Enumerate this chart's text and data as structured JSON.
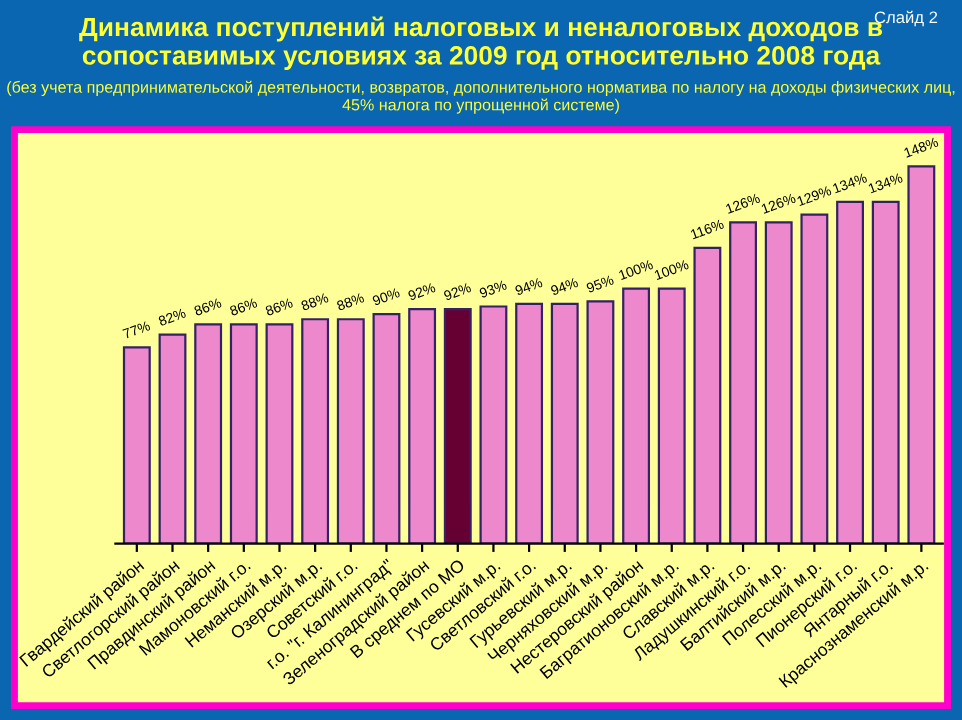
{
  "chart_data": {
    "type": "bar",
    "title": "Динамика поступлений налоговых и неналоговых доходов в сопоставимых условиях за 2009 год относительно 2008 года",
    "subtitle": "(без учета предпринимательской деятельности, возвратов, дополнительного норматива по налогу на доходы физических лиц, 45% налога по упрощенной системе)",
    "annotations": [
      "Слайд 2"
    ],
    "categories": [
      "Гвардейский район",
      "Светлогорский район",
      "Правдинский район",
      "Мамоновский г.о.",
      "Неманский м.р.",
      "Озерский м.р.",
      "Советский г.о.",
      "г.о. \"г. Калининград\"",
      "Зеленоградский район",
      "В среднем по МО",
      "Гусевский м.р.",
      "Светловский г.о.",
      "Гурьевский м.р.",
      "Черняховский м.р.",
      "Нестеровский район",
      "Багратионовский м.р.",
      "Славский м.р.",
      "Ладушкинский г.о.",
      "Балтийский м.р.",
      "Полесский м.р.",
      "Пионерский г.о.",
      "Янтарный г.о.",
      "Краснознаменский м.р."
    ],
    "values": [
      77,
      82,
      86,
      86,
      86,
      88,
      88,
      90,
      92,
      92,
      93,
      94,
      94,
      95,
      100,
      100,
      116,
      126,
      126,
      129,
      134,
      134,
      148
    ],
    "value_labels": [
      "77%",
      "82%",
      "86%",
      "86%",
      "86%",
      "88%",
      "88%",
      "90%",
      "92%",
      "92%",
      "93%",
      "94%",
      "94%",
      "95%",
      "100%",
      "100%",
      "116%",
      "126%",
      "126%",
      "129%",
      "134%",
      "134%",
      "148%"
    ],
    "colors": [
      "#ee88cc",
      "#ee88cc",
      "#ee88cc",
      "#ee88cc",
      "#ee88cc",
      "#ee88cc",
      "#ee88cc",
      "#ee88cc",
      "#ee88cc",
      "#660033",
      "#ee88cc",
      "#ee88cc",
      "#ee88cc",
      "#ee88cc",
      "#ee88cc",
      "#ee88cc",
      "#ee88cc",
      "#ee88cc",
      "#ee88cc",
      "#ee88cc",
      "#ee88cc",
      "#ee88cc",
      "#ee88cc"
    ],
    "tick_labels": "x"
  }
}
